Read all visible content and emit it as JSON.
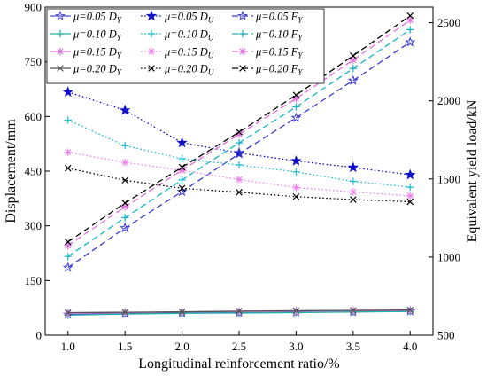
{
  "chart_data": {
    "type": "line",
    "xlabel": "Longitudinal reinforcement ratio/%",
    "ylabel_left": "Displacement/mm",
    "ylabel_right": "Equivalent yield load/kN",
    "x": [
      1.0,
      1.5,
      2.0,
      2.5,
      3.0,
      3.5,
      4.0
    ],
    "x_tick_labels": [
      "1.0",
      "1.5",
      "2.0",
      "2.5",
      "3.0",
      "3.5",
      "4.0"
    ],
    "xlim": [
      0.8,
      4.2
    ],
    "ylim_left": [
      0,
      900
    ],
    "y_left_ticks": [
      0,
      150,
      300,
      450,
      600,
      750,
      900
    ],
    "y_left_tick_labels": [
      "0",
      "150",
      "300",
      "450",
      "600",
      "750",
      "900"
    ],
    "ylim_right": [
      500,
      2600
    ],
    "y_right_ticks": [
      500,
      1000,
      1500,
      2000,
      2500
    ],
    "y_right_tick_labels": [
      "500",
      "1000",
      "1500",
      "2000",
      "2500"
    ],
    "grid": false,
    "legend_position": "top-left",
    "series": [
      {
        "name": "μ=0.05 D",
        "sub": "Y",
        "axis": "left",
        "color": "#5050d0",
        "marker": "star",
        "dash": "solid",
        "values": [
          57,
          59,
          61,
          62,
          63,
          64,
          66
        ]
      },
      {
        "name": "μ=0.05 D",
        "sub": "U",
        "axis": "left",
        "color": "#1010c8",
        "marker": "star-filled",
        "dash": "dotted",
        "values": [
          667,
          617,
          528,
          500,
          478,
          460,
          440
        ]
      },
      {
        "name": "μ=0.05 F",
        "sub": "Y",
        "axis": "right",
        "color": "#3a3ad0",
        "marker": "star",
        "dash": "dashed",
        "values": [
          933,
          1186,
          1419,
          1661,
          1892,
          2130,
          2376
        ]
      },
      {
        "name": "μ=0.10 D",
        "sub": "Y",
        "axis": "left",
        "color": "#20b2aa",
        "marker": "plus",
        "dash": "solid",
        "values": [
          55,
          58,
          60,
          61,
          62,
          64,
          65
        ]
      },
      {
        "name": "μ=0.10 D",
        "sub": "U",
        "axis": "left",
        "color": "#1fbcd2",
        "marker": "plus",
        "dash": "dotted",
        "values": [
          590,
          520,
          484,
          467,
          448,
          422,
          406
        ]
      },
      {
        "name": "μ=0.10 F",
        "sub": "Y",
        "axis": "right",
        "color": "#18b4c4",
        "marker": "plus",
        "dash": "dashed",
        "values": [
          1004,
          1252,
          1494,
          1731,
          1961,
          2207,
          2456
        ]
      },
      {
        "name": "μ=0.15 D",
        "sub": "Y",
        "axis": "left",
        "color": "#d070d8",
        "marker": "asterisk",
        "dash": "solid",
        "values": [
          60,
          62,
          64,
          65,
          66,
          67,
          68
        ]
      },
      {
        "name": "μ=0.15 D",
        "sub": "U",
        "axis": "left",
        "color": "#ee82ee",
        "marker": "asterisk",
        "dash": "dotted",
        "values": [
          502,
          474,
          452,
          427,
          405,
          393,
          382
        ]
      },
      {
        "name": "μ=0.15 F",
        "sub": "Y",
        "axis": "right",
        "color": "#e070e0",
        "marker": "asterisk",
        "dash": "dashed",
        "values": [
          1074,
          1321,
          1557,
          1786,
          2014,
          2261,
          2517
        ]
      },
      {
        "name": "μ=0.20 D",
        "sub": "Y",
        "axis": "left",
        "color": "#555555",
        "marker": "x",
        "dash": "solid",
        "values": [
          62,
          63,
          64,
          66,
          67,
          68,
          69
        ]
      },
      {
        "name": "μ=0.20 D",
        "sub": "U",
        "axis": "left",
        "color": "#000000",
        "marker": "x",
        "dash": "dotted",
        "values": [
          458,
          425,
          403,
          392,
          380,
          372,
          366
        ]
      },
      {
        "name": "μ=0.20 F",
        "sub": "Y",
        "axis": "right",
        "color": "#000000",
        "marker": "x",
        "dash": "dashed",
        "values": [
          1097,
          1346,
          1575,
          1800,
          2037,
          2289,
          2545
        ]
      }
    ]
  }
}
